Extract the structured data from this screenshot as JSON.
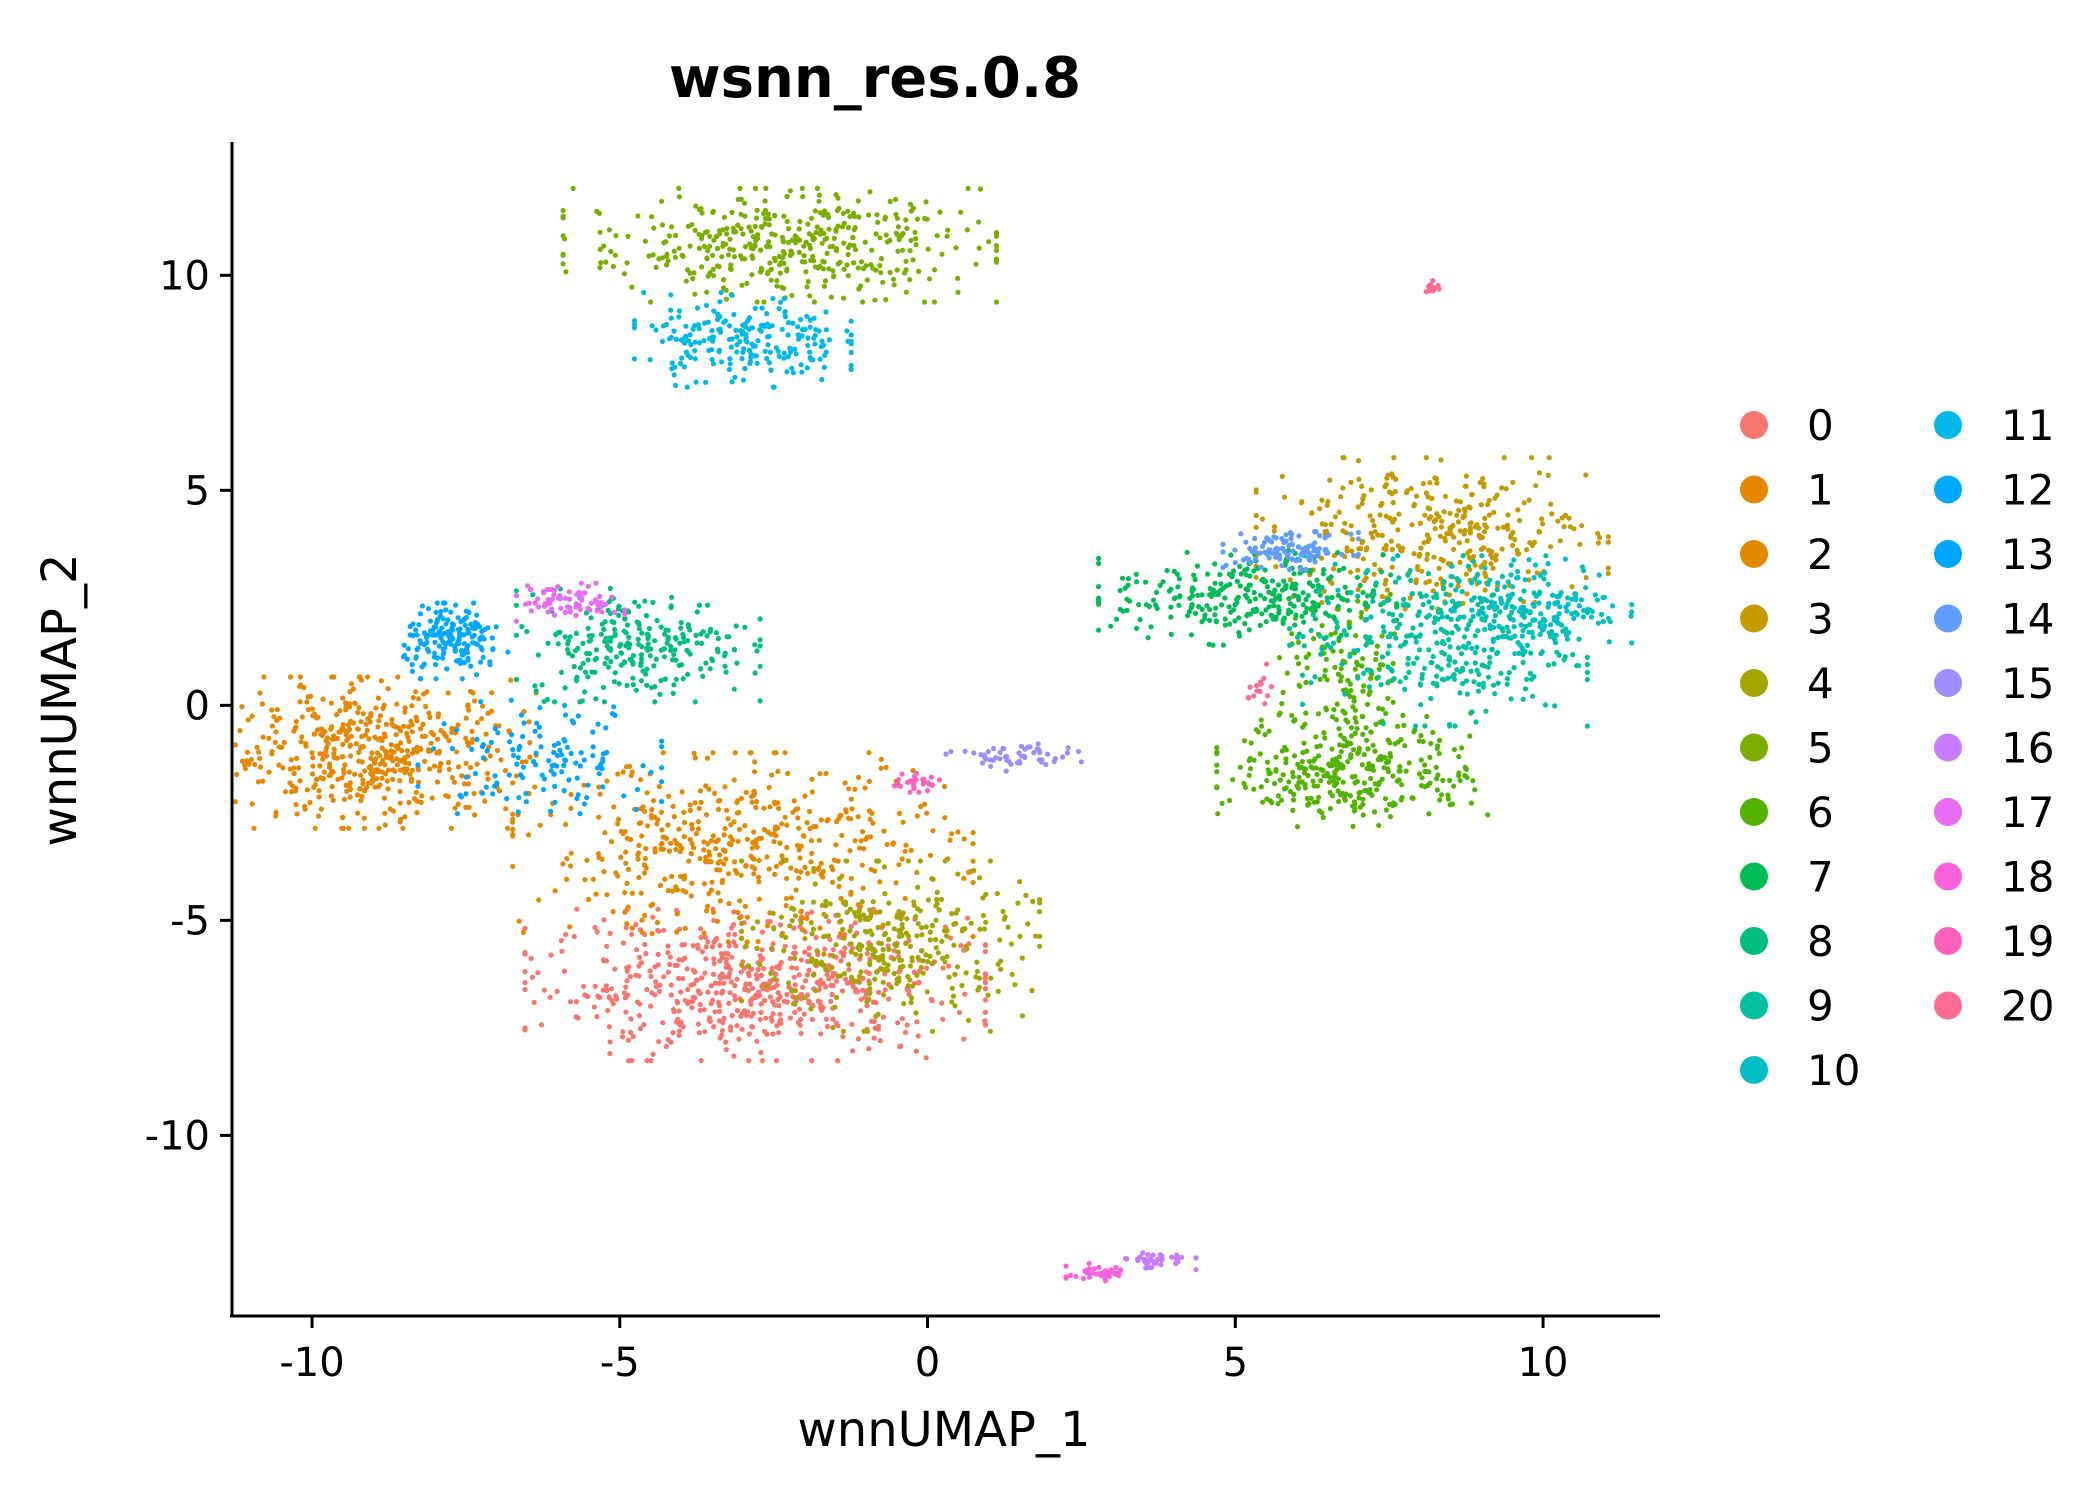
{
  "chart_data": {
    "type": "scatter",
    "title": "wsnn_res.0.8",
    "xlabel": "wnnUMAP_1",
    "ylabel": "wnnUMAP_2",
    "xlim": [
      -11.3,
      11.9
    ],
    "ylim": [
      -14.2,
      13.1
    ],
    "xticks": [
      -10,
      -5,
      0,
      5,
      10
    ],
    "yticks": [
      10,
      5,
      0,
      -5,
      -10
    ],
    "xtick_labels": [
      "-10",
      "-5",
      "0",
      "5",
      "10"
    ],
    "ytick_labels": [
      "10",
      "5",
      "0",
      "-5",
      "-10"
    ],
    "grid": false,
    "legend_position": "right",
    "legend_columns": 2,
    "legend_title": "",
    "series": [
      {
        "name": "0",
        "color": "#F8766D",
        "clusters": [
          {
            "center": [
              -2.8,
              -6.5
            ],
            "spread": [
              1.7,
              0.8
            ],
            "n": 620
          }
        ]
      },
      {
        "name": "1",
        "color": "#E58700",
        "clusters": [
          {
            "center": [
              -9.0,
              -1.1
            ],
            "spread": [
              1.2,
              0.8
            ],
            "n": 520
          }
        ]
      },
      {
        "name": "2",
        "color": "#E38900",
        "clusters": [
          {
            "center": [
              -3.0,
              -3.3
            ],
            "spread": [
              1.7,
              1.0
            ],
            "n": 480
          }
        ]
      },
      {
        "name": "3",
        "color": "#C49A00",
        "clusters": [
          {
            "center": [
              8.2,
              4.0
            ],
            "spread": [
              1.3,
              0.8
            ],
            "n": 360
          }
        ]
      },
      {
        "name": "4",
        "color": "#A3A500",
        "clusters": [
          {
            "center": [
              -0.6,
              -5.6
            ],
            "spread": [
              1.1,
              0.9
            ],
            "n": 330
          }
        ]
      },
      {
        "name": "5",
        "color": "#7CAE00",
        "clusters": [
          {
            "center": [
              -2.4,
              10.7
            ],
            "spread": [
              1.6,
              0.6
            ],
            "n": 420
          }
        ]
      },
      {
        "name": "6",
        "color": "#53B400",
        "clusters": [
          {
            "center": [
              6.9,
              -1.5
            ],
            "spread": [
              1.0,
              0.6
            ],
            "n": 320
          },
          {
            "center": [
              6.8,
              0.6
            ],
            "spread": [
              0.5,
              0.9
            ],
            "n": 130
          }
        ]
      },
      {
        "name": "7",
        "color": "#00BC56",
        "clusters": [
          {
            "center": [
              5.2,
              2.5
            ],
            "spread": [
              1.1,
              0.5
            ],
            "n": 300
          }
        ]
      },
      {
        "name": "8",
        "color": "#00BF7D",
        "clusters": [
          {
            "center": [
              -4.7,
              1.4
            ],
            "spread": [
              0.9,
              0.6
            ],
            "n": 260
          }
        ]
      },
      {
        "name": "9",
        "color": "#00C19F",
        "clusters": [
          {
            "center": [
              8.3,
              1.5
            ],
            "spread": [
              1.1,
              0.9
            ],
            "n": 340
          }
        ]
      },
      {
        "name": "10",
        "color": "#00BFC4",
        "clusters": [
          {
            "center": [
              9.9,
              2.3
            ],
            "spread": [
              0.7,
              0.5
            ],
            "n": 180
          }
        ]
      },
      {
        "name": "11",
        "color": "#00B8E7",
        "clusters": [
          {
            "center": [
              -3.0,
              8.5
            ],
            "spread": [
              0.8,
              0.5
            ],
            "n": 220
          }
        ]
      },
      {
        "name": "12",
        "color": "#00A9FF",
        "clusters": [
          {
            "center": [
              -7.7,
              1.5
            ],
            "spread": [
              0.4,
              0.4
            ],
            "n": 180
          }
        ]
      },
      {
        "name": "13",
        "color": "#00A5FF",
        "clusters": [
          {
            "center": [
              -6.3,
              -1.2
            ],
            "spread": [
              0.9,
              0.6
            ],
            "n": 130
          }
        ]
      },
      {
        "name": "14",
        "color": "#619CFF",
        "clusters": [
          {
            "center": [
              5.9,
              3.6
            ],
            "spread": [
              0.5,
              0.2
            ],
            "n": 110
          }
        ]
      },
      {
        "name": "15",
        "color": "#9F8CFF",
        "clusters": [
          {
            "center": [
              1.4,
              -1.2
            ],
            "spread": [
              0.5,
              0.15
            ],
            "n": 55
          }
        ]
      },
      {
        "name": "16",
        "color": "#C77CFF",
        "clusters": [
          {
            "center": [
              3.7,
              -12.9
            ],
            "spread": [
              0.3,
              0.1
            ],
            "n": 40
          }
        ]
      },
      {
        "name": "17",
        "color": "#E76BF3",
        "clusters": [
          {
            "center": [
              -5.8,
              2.4
            ],
            "spread": [
              0.4,
              0.2
            ],
            "n": 70
          }
        ]
      },
      {
        "name": "18",
        "color": "#FA62DB",
        "clusters": [
          {
            "center": [
              2.8,
              -13.2
            ],
            "spread": [
              0.25,
              0.1
            ],
            "n": 45
          }
        ]
      },
      {
        "name": "19",
        "color": "#FF62BC",
        "clusters": [
          {
            "center": [
              -0.2,
              -1.8
            ],
            "spread": [
              0.2,
              0.1
            ],
            "n": 30
          }
        ]
      },
      {
        "name": "20",
        "color": "#FF6C91",
        "clusters": [
          {
            "center": [
              8.2,
              9.7
            ],
            "spread": [
              0.05,
              0.08
            ],
            "n": 14
          },
          {
            "center": [
              5.4,
              0.3
            ],
            "spread": [
              0.1,
              0.3
            ],
            "n": 14
          }
        ]
      }
    ]
  }
}
